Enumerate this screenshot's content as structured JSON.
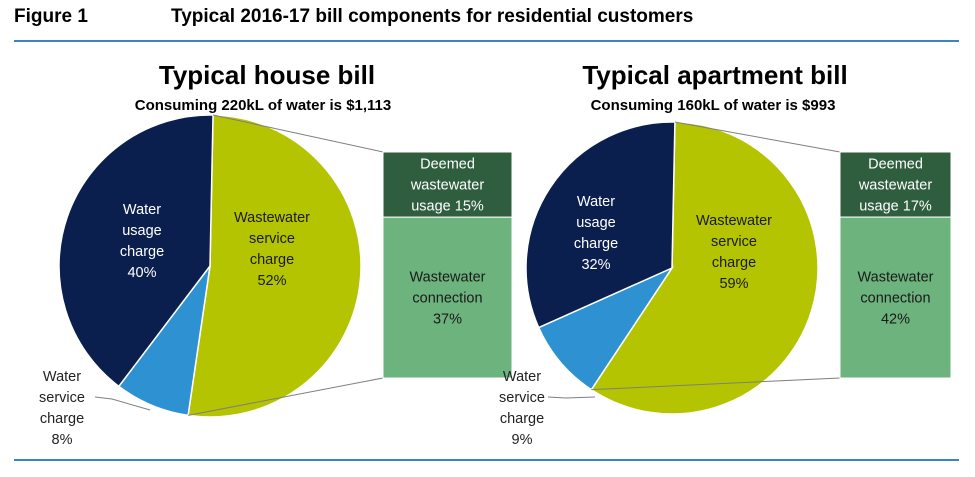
{
  "figure": {
    "number": "Figure 1",
    "title": "Typical 2016-17 bill components for residential customers"
  },
  "colors": {
    "water_usage": "#0b1f4e",
    "water_service": "#2e91d2",
    "wastewater_service": "#b5c400",
    "deemed_usage": "#2e5e3e",
    "connection": "#6db37e",
    "rule": "#3a84c4"
  },
  "chart_data": [
    {
      "type": "pie",
      "title": "Typical house bill",
      "subtitle": "Consuming  220kL of water is $1,113",
      "slices": [
        {
          "label": [
            "Water",
            "usage",
            "charge",
            "40%"
          ],
          "value": 40,
          "color": "#0b1f4e"
        },
        {
          "label": [
            "Water",
            "service",
            "charge",
            "8%"
          ],
          "value": 8,
          "color": "#2e91d2"
        },
        {
          "label": [
            "Wastewater",
            "service",
            "charge",
            "52%"
          ],
          "value": 52,
          "color": "#b5c400"
        }
      ],
      "breakdown": [
        {
          "label": [
            "Deemed",
            "wastewater",
            "usage 15%"
          ],
          "value": 15,
          "color": "#2e5e3e"
        },
        {
          "label": [
            "Wastewater",
            "connection",
            "37%"
          ],
          "value": 37,
          "color": "#6db37e"
        }
      ]
    },
    {
      "type": "pie",
      "title": "Typical apartment bill",
      "subtitle": "Consuming  160kL of water is $993",
      "slices": [
        {
          "label": [
            "Water",
            "usage",
            "charge",
            "32%"
          ],
          "value": 32,
          "color": "#0b1f4e"
        },
        {
          "label": [
            "Water",
            "service",
            "charge",
            "9%"
          ],
          "value": 9,
          "color": "#2e91d2"
        },
        {
          "label": [
            "Wastewater",
            "service",
            "charge",
            "59%"
          ],
          "value": 59,
          "color": "#b5c400"
        }
      ],
      "breakdown": [
        {
          "label": [
            "Deemed",
            "wastewater",
            "usage 17%"
          ],
          "value": 17,
          "color": "#2e5e3e"
        },
        {
          "label": [
            "Wastewater",
            "connection",
            "42%"
          ],
          "value": 42,
          "color": "#6db37e"
        }
      ]
    }
  ]
}
